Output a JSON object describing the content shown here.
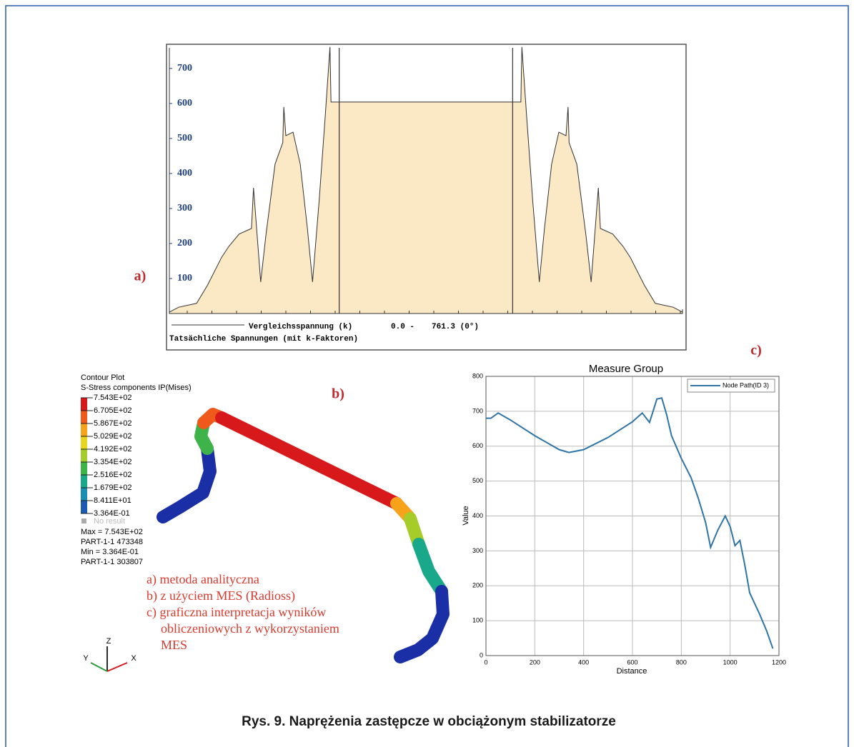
{
  "chart_data": [
    {
      "type": "area",
      "label": "a)",
      "color": "#fbe8c5",
      "x": [
        0,
        1.8,
        5.3,
        7.4,
        10.2,
        11.6,
        13.6,
        16.0,
        16.4,
        17.8,
        18.8,
        20.6,
        22.1,
        22.3,
        22.7,
        24.1,
        25.5,
        26.9,
        27.9,
        29.2,
        30.4,
        31.3,
        31.5,
        68.5,
        68.7,
        69.6,
        70.8,
        72.1,
        73.1,
        74.5,
        75.9,
        77.3,
        77.7,
        77.9,
        79.4,
        81.2,
        82.2,
        83.6,
        84.0,
        86.4,
        88.4,
        89.8,
        92.6,
        94.7,
        98.2,
        100
      ],
      "values": [
        4,
        18,
        29,
        80,
        161,
        192,
        227,
        243,
        359,
        90,
        222,
        427,
        488,
        590,
        508,
        518,
        427,
        243,
        90,
        324,
        569,
        761.3,
        604,
        604,
        761.3,
        569,
        324,
        90,
        243,
        427,
        518,
        508,
        590,
        488,
        427,
        222,
        90,
        359,
        243,
        227,
        192,
        161,
        80,
        29,
        18,
        4
      ],
      "markers": [
        33.1,
        66.9
      ],
      "xlim": [
        0,
        100
      ],
      "ylim": [
        0,
        769
      ],
      "yticks": [
        100,
        200,
        300,
        400,
        500,
        600,
        700
      ],
      "legend": [
        "Vergleichsspannung (k)",
        "0.0 -",
        "761.3 (0°)"
      ],
      "subtitle": "Tatsächliche Spannungen (mit k-Faktoren)"
    },
    {
      "type": "line",
      "label": "c)",
      "title": "Measure Group",
      "x_label": "Distance",
      "y_label": "Value",
      "x": [
        0,
        20,
        50,
        100,
        200,
        300,
        340,
        400,
        500,
        600,
        640,
        670,
        700,
        720,
        740,
        760,
        800,
        840,
        870,
        900,
        920,
        950,
        980,
        1000,
        1020,
        1040,
        1060,
        1080,
        1120,
        1150,
        1175
      ],
      "series": [
        {
          "name": "Node Path(ID 3)",
          "color": "#2f74a6",
          "values": [
            680,
            680,
            695,
            675,
            630,
            590,
            582,
            590,
            625,
            670,
            695,
            668,
            735,
            738,
            690,
            630,
            565,
            510,
            450,
            380,
            310,
            360,
            400,
            370,
            315,
            330,
            260,
            180,
            120,
            70,
            20
          ]
        }
      ],
      "xlim": [
        0,
        1200
      ],
      "ylim": [
        0,
        800
      ],
      "xticks": [
        0,
        200,
        400,
        600,
        800,
        1000,
        1200
      ],
      "yticks": [
        0,
        100,
        200,
        300,
        400,
        500,
        600,
        700,
        800
      ],
      "grid": true,
      "legend_position": "upper right"
    }
  ],
  "contour": {
    "label": "b)",
    "title": "Contour Plot",
    "subtitle": "S-Stress components IP(Mises)",
    "levels": [
      {
        "label": "7.543E+02",
        "color": "#d7191c"
      },
      {
        "label": "6.705E+02",
        "color": "#ef5a1c"
      },
      {
        "label": "5.867E+02",
        "color": "#f6a31b"
      },
      {
        "label": "5.029E+02",
        "color": "#e6d61e"
      },
      {
        "label": "4.192E+02",
        "color": "#a6cc2a"
      },
      {
        "label": "3.354E+02",
        "color": "#3db34a"
      },
      {
        "label": "2.516E+02",
        "color": "#1aa88a"
      },
      {
        "label": "1.679E+02",
        "color": "#1b8fb3"
      },
      {
        "label": "8.411E+01",
        "color": "#1a5ab4"
      },
      {
        "label": "3.364E-01",
        "color": "#1a2fa6"
      }
    ],
    "no_result": "No result",
    "info": [
      "Max = 7.543E+02",
      "PART-1-1 473348",
      "Min = 3.364E-01",
      "PART-1-1 303807"
    ],
    "axes": [
      "Z",
      "Y",
      "X"
    ]
  },
  "notes": [
    "a) metoda analityczna",
    "b) z użyciem MES (Radioss)",
    "c) graficzna interpretacja wyników",
    "obliczeniowych z wykorzystaniem",
    "MES"
  ],
  "caption": "Rys. 9. Naprężenia zastępcze w obciążonym stabilizatorze"
}
